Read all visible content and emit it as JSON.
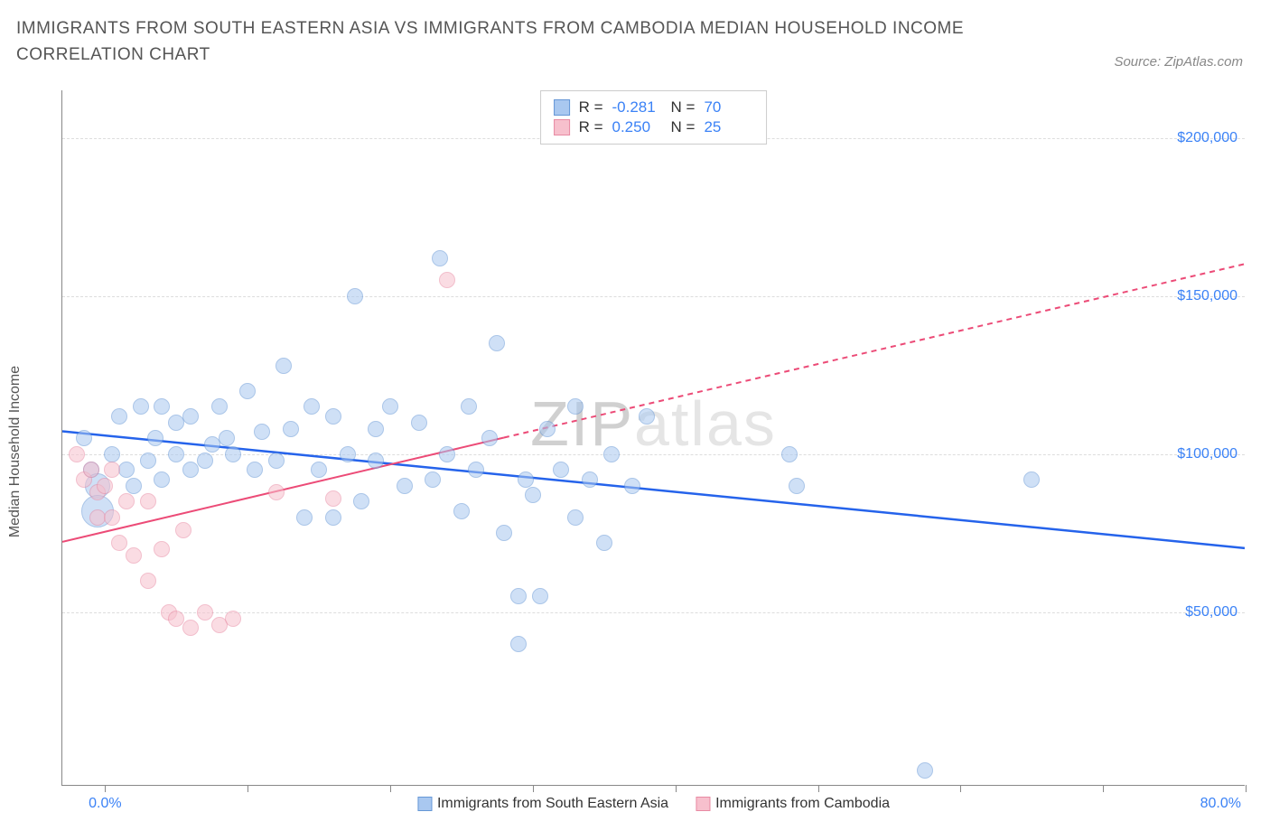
{
  "title": "IMMIGRANTS FROM SOUTH EASTERN ASIA VS IMMIGRANTS FROM CAMBODIA MEDIAN HOUSEHOLD INCOME CORRELATION CHART",
  "source_label": "Source: ZipAtlas.com",
  "ylabel": "Median Household Income",
  "watermark_a": "ZIP",
  "watermark_b": "atlas",
  "chart_type": "scatter",
  "background_color": "#ffffff",
  "grid_color": "#dddddd",
  "axis_color": "#888888",
  "title_color": "#555555",
  "value_color": "#3b82f6",
  "xaxis": {
    "min_pct": -3.0,
    "max_pct": 80.0,
    "min_label": "0.0%",
    "max_label": "80.0%",
    "tick_positions_pct": [
      0,
      10,
      20,
      30,
      40,
      50,
      60,
      70,
      80
    ],
    "label_fontsize": 16
  },
  "yaxis": {
    "min": -5000,
    "max": 215000,
    "ticks": [
      {
        "value": 50000,
        "label": "$50,000"
      },
      {
        "value": 100000,
        "label": "$100,000"
      },
      {
        "value": 150000,
        "label": "$150,000"
      },
      {
        "value": 200000,
        "label": "$200,000"
      }
    ],
    "label_fontsize": 16
  },
  "series": [
    {
      "id": "sea",
      "name": "Immigrants from South Eastern Asia",
      "fill": "#a9c8f0",
      "fill_opacity": 0.55,
      "stroke": "#6597d6",
      "marker_radius": 9,
      "stats": {
        "R": "-0.281",
        "N": "70"
      },
      "trend": {
        "color": "#2563eb",
        "width": 2.5,
        "dash": "none",
        "x1_pct": -3.0,
        "y1": 107000,
        "x2_pct": 80.0,
        "y2": 70000,
        "x_solid_end_pct": 80.0
      },
      "points": [
        {
          "x_pct": -1.5,
          "y": 105000
        },
        {
          "x_pct": -1.0,
          "y": 95000
        },
        {
          "x_pct": -0.5,
          "y": 90000,
          "r": 14
        },
        {
          "x_pct": -0.5,
          "y": 82000,
          "r": 18
        },
        {
          "x_pct": 0.5,
          "y": 100000
        },
        {
          "x_pct": 1.0,
          "y": 112000
        },
        {
          "x_pct": 1.5,
          "y": 95000
        },
        {
          "x_pct": 2.0,
          "y": 90000
        },
        {
          "x_pct": 2.5,
          "y": 115000
        },
        {
          "x_pct": 3.0,
          "y": 98000
        },
        {
          "x_pct": 3.5,
          "y": 105000
        },
        {
          "x_pct": 4.0,
          "y": 92000
        },
        {
          "x_pct": 4.0,
          "y": 115000
        },
        {
          "x_pct": 5.0,
          "y": 100000
        },
        {
          "x_pct": 5.0,
          "y": 110000
        },
        {
          "x_pct": 6.0,
          "y": 95000
        },
        {
          "x_pct": 6.0,
          "y": 112000
        },
        {
          "x_pct": 7.0,
          "y": 98000
        },
        {
          "x_pct": 7.5,
          "y": 103000
        },
        {
          "x_pct": 8.0,
          "y": 115000
        },
        {
          "x_pct": 8.5,
          "y": 105000
        },
        {
          "x_pct": 9.0,
          "y": 100000
        },
        {
          "x_pct": 10.0,
          "y": 120000
        },
        {
          "x_pct": 10.5,
          "y": 95000
        },
        {
          "x_pct": 11.0,
          "y": 107000
        },
        {
          "x_pct": 12.0,
          "y": 98000
        },
        {
          "x_pct": 12.5,
          "y": 128000
        },
        {
          "x_pct": 13.0,
          "y": 108000
        },
        {
          "x_pct": 14.0,
          "y": 80000
        },
        {
          "x_pct": 14.5,
          "y": 115000
        },
        {
          "x_pct": 15.0,
          "y": 95000
        },
        {
          "x_pct": 16.0,
          "y": 112000
        },
        {
          "x_pct": 16.0,
          "y": 80000
        },
        {
          "x_pct": 17.0,
          "y": 100000
        },
        {
          "x_pct": 17.5,
          "y": 150000
        },
        {
          "x_pct": 18.0,
          "y": 85000
        },
        {
          "x_pct": 19.0,
          "y": 98000
        },
        {
          "x_pct": 19.0,
          "y": 108000
        },
        {
          "x_pct": 20.0,
          "y": 115000
        },
        {
          "x_pct": 21.0,
          "y": 90000
        },
        {
          "x_pct": 22.0,
          "y": 110000
        },
        {
          "x_pct": 23.0,
          "y": 92000
        },
        {
          "x_pct": 23.5,
          "y": 162000
        },
        {
          "x_pct": 24.0,
          "y": 100000
        },
        {
          "x_pct": 25.0,
          "y": 82000
        },
        {
          "x_pct": 25.5,
          "y": 115000
        },
        {
          "x_pct": 26.0,
          "y": 95000
        },
        {
          "x_pct": 27.0,
          "y": 105000
        },
        {
          "x_pct": 27.5,
          "y": 135000
        },
        {
          "x_pct": 28.0,
          "y": 75000
        },
        {
          "x_pct": 29.0,
          "y": 40000
        },
        {
          "x_pct": 29.0,
          "y": 55000
        },
        {
          "x_pct": 29.5,
          "y": 92000
        },
        {
          "x_pct": 30.0,
          "y": 87000
        },
        {
          "x_pct": 30.5,
          "y": 55000
        },
        {
          "x_pct": 31.0,
          "y": 108000
        },
        {
          "x_pct": 32.0,
          "y": 95000
        },
        {
          "x_pct": 33.0,
          "y": 80000
        },
        {
          "x_pct": 33.0,
          "y": 115000
        },
        {
          "x_pct": 34.0,
          "y": 92000
        },
        {
          "x_pct": 35.0,
          "y": 72000
        },
        {
          "x_pct": 35.5,
          "y": 100000
        },
        {
          "x_pct": 37.0,
          "y": 90000
        },
        {
          "x_pct": 38.0,
          "y": 112000
        },
        {
          "x_pct": 48.0,
          "y": 100000
        },
        {
          "x_pct": 48.5,
          "y": 90000
        },
        {
          "x_pct": 57.5,
          "y": 0
        },
        {
          "x_pct": 65.0,
          "y": 92000
        }
      ]
    },
    {
      "id": "cambodia",
      "name": "Immigrants from Cambodia",
      "fill": "#f7c0cd",
      "fill_opacity": 0.55,
      "stroke": "#e88aa3",
      "marker_radius": 9,
      "stats": {
        "R": "0.250",
        "N": "25"
      },
      "trend": {
        "color": "#ec4b77",
        "width": 2,
        "x1_pct": -3.0,
        "y1": 72000,
        "x_solid_end_pct": 28.0,
        "y_solid_end": 105000,
        "x2_pct": 80.0,
        "y2": 160000,
        "dash_after": "6,5"
      },
      "points": [
        {
          "x_pct": -2.0,
          "y": 100000
        },
        {
          "x_pct": -1.5,
          "y": 92000
        },
        {
          "x_pct": -1.0,
          "y": 95000
        },
        {
          "x_pct": -0.5,
          "y": 88000
        },
        {
          "x_pct": -0.5,
          "y": 80000
        },
        {
          "x_pct": 0.0,
          "y": 90000
        },
        {
          "x_pct": 0.5,
          "y": 95000
        },
        {
          "x_pct": 0.5,
          "y": 80000
        },
        {
          "x_pct": 1.0,
          "y": 72000
        },
        {
          "x_pct": 1.5,
          "y": 85000
        },
        {
          "x_pct": 2.0,
          "y": 68000
        },
        {
          "x_pct": 3.0,
          "y": 60000
        },
        {
          "x_pct": 3.0,
          "y": 85000
        },
        {
          "x_pct": 4.0,
          "y": 70000
        },
        {
          "x_pct": 4.5,
          "y": 50000
        },
        {
          "x_pct": 5.0,
          "y": 48000
        },
        {
          "x_pct": 5.5,
          "y": 76000
        },
        {
          "x_pct": 6.0,
          "y": 45000
        },
        {
          "x_pct": 7.0,
          "y": 50000
        },
        {
          "x_pct": 8.0,
          "y": 46000
        },
        {
          "x_pct": 9.0,
          "y": 48000
        },
        {
          "x_pct": 12.0,
          "y": 88000
        },
        {
          "x_pct": 16.0,
          "y": 86000
        },
        {
          "x_pct": 24.0,
          "y": 155000
        }
      ]
    }
  ],
  "stats_box": {
    "rows": [
      {
        "series_id": "sea",
        "R_label": "R =",
        "N_label": "N ="
      },
      {
        "series_id": "cambodia",
        "R_label": "R =",
        "N_label": "N ="
      }
    ]
  },
  "legend_bottom": [
    {
      "series_id": "sea"
    },
    {
      "series_id": "cambodia"
    }
  ]
}
